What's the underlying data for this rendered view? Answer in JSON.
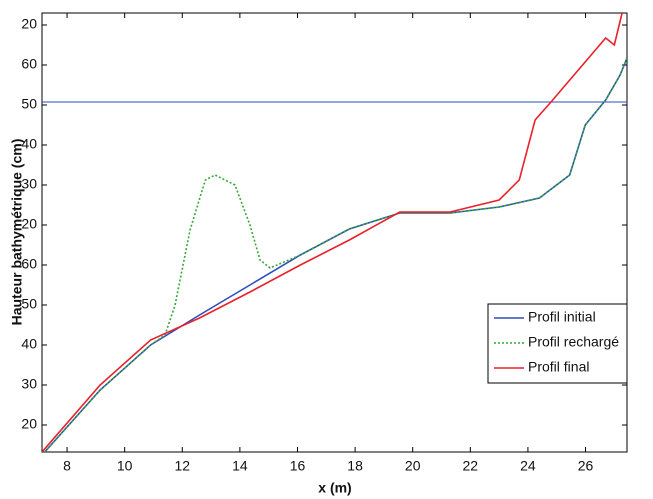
{
  "chart_data": {
    "type": "line",
    "y_label": "Hauteur bathymétrique (cm)",
    "x_label": "x (m)",
    "xlim": [
      7.13,
      27.44
    ],
    "ylim": [
      13.25,
      123
    ],
    "xticks": [
      8,
      10,
      12,
      14,
      16,
      18,
      20,
      22,
      24,
      26
    ],
    "yticks": [
      20,
      30,
      40,
      50,
      60,
      {
        "value": 70,
        "label": "20"
      },
      {
        "value": 80,
        "label": "30"
      },
      {
        "value": 90,
        "label": "40"
      },
      {
        "value": 100,
        "label": "50"
      },
      {
        "value": 110,
        "label": "60"
      },
      {
        "value": 120,
        "label": "20"
      }
    ],
    "hline": {
      "value": 100.75,
      "color": "#2b4fbf"
    },
    "legend": "lower right",
    "series": [
      {
        "name": "Profil initial",
        "color": "#2b4fbf",
        "dash": false,
        "x": [
          7.13,
          9.15,
          10.9,
          12.6,
          14.35,
          16.1,
          17.8,
          19.55,
          21.3,
          23.0,
          24.4,
          25.45,
          25.99,
          26.7,
          27.2,
          27.44
        ],
        "values": [
          12.5,
          28.75,
          40,
          47.5,
          55,
          62.5,
          69,
          73,
          73,
          74.5,
          76.75,
          82.5,
          95,
          101.25,
          107.5,
          111.75
        ]
      },
      {
        "name": "Profil rechargé",
        "color": "#3aa63a",
        "dash": true,
        "x": [
          7.13,
          9.15,
          10.9,
          11.4,
          11.75,
          12.27,
          12.8,
          13.14,
          13.83,
          14.35,
          14.7,
          15.05,
          16.1,
          17.8,
          19.55,
          21.3,
          23.0,
          24.4,
          25.45,
          25.99,
          26.7,
          27.2,
          27.44
        ],
        "values": [
          12.5,
          28.75,
          40,
          42.5,
          50,
          68.75,
          81.25,
          82.5,
          80,
          70,
          61.25,
          59.25,
          62.5,
          69,
          73,
          73,
          74.5,
          76.75,
          82.5,
          95,
          101.25,
          107.5,
          111.75
        ]
      },
      {
        "name": "Profil final",
        "color": "#e8212b",
        "dash": false,
        "x": [
          7.13,
          9.15,
          10.9,
          12.6,
          14.35,
          16.1,
          17.8,
          19.55,
          21.3,
          23.0,
          23.7,
          24.25,
          24.8,
          26.7,
          27.0,
          27.27
        ],
        "values": [
          13.25,
          30,
          41.25,
          46.75,
          53.25,
          60,
          66.25,
          73.25,
          73.25,
          76.25,
          81.25,
          96.25,
          100.75,
          116.75,
          115,
          123
        ]
      }
    ]
  }
}
